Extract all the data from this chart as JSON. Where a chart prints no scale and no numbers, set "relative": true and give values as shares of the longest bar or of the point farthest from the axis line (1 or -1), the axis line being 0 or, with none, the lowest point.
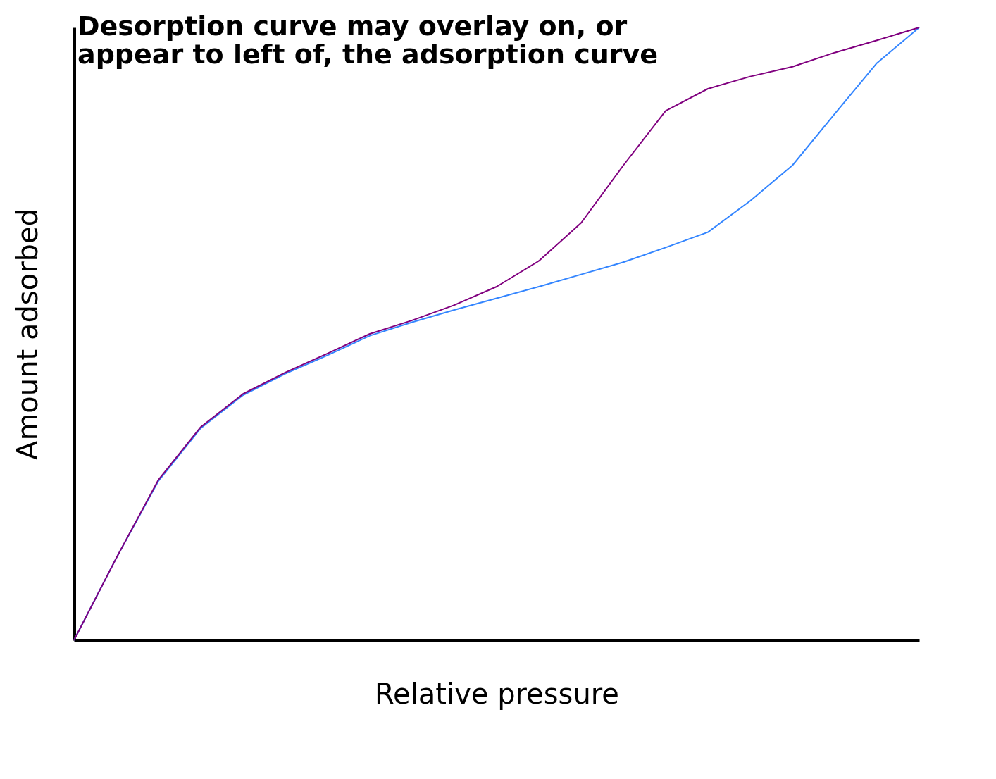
{
  "chart_data": {
    "type": "line",
    "relative": true,
    "grid": false,
    "marker": "none",
    "line_style": "solid",
    "title": "Desorption curve may overlay on, or\nappear to left of, the adsorption curve",
    "xlabel": "Relative pressure",
    "ylabel": "Amount adsorbed",
    "categories": [
      null,
      null,
      null,
      null,
      null,
      null,
      null,
      null,
      null,
      null,
      null,
      null,
      null,
      null,
      null,
      null,
      null,
      null,
      null,
      null,
      null
    ],
    "series": [
      {
        "color": "#3385ff",
        "values": [
          0,
          0.134,
          0.26,
          0.346,
          0.4,
          0.435,
          0.465,
          0.497,
          0.519,
          0.539,
          0.558,
          0.577,
          0.597,
          0.617,
          0.641,
          0.666,
          0.717,
          0.775,
          0.859,
          0.942,
          1
        ]
      },
      {
        "color": "#80007f",
        "values": [
          0,
          0.134,
          0.262,
          0.348,
          0.402,
          0.437,
          0.468,
          0.5,
          0.522,
          0.547,
          0.577,
          0.619,
          0.681,
          0.775,
          0.864,
          0.9,
          0.92,
          0.936,
          0.959,
          0.979,
          1
        ]
      }
    ]
  }
}
